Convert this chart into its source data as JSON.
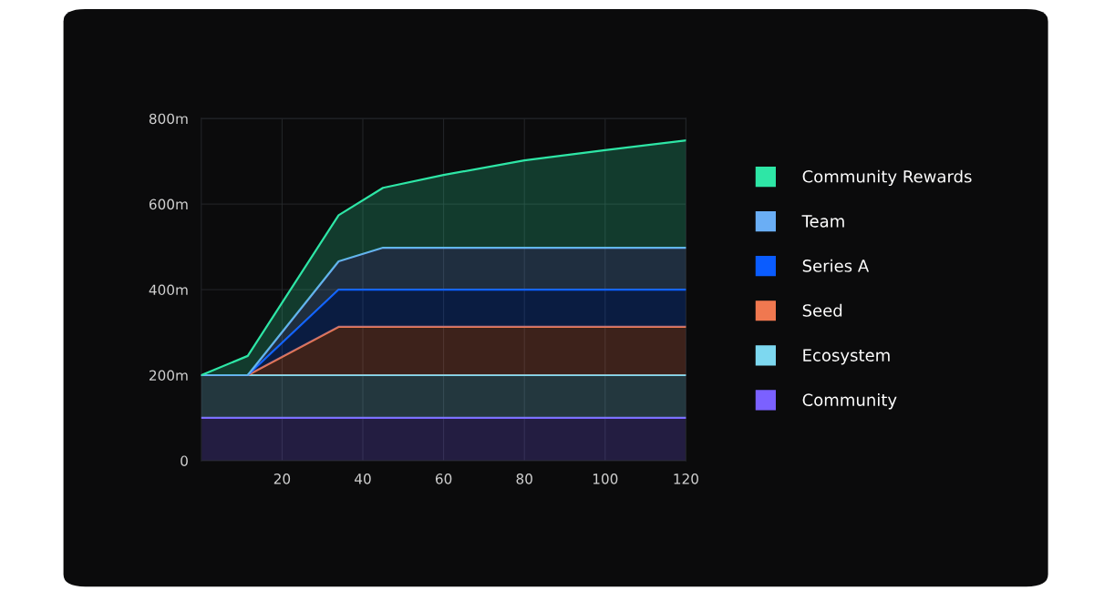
{
  "chart_data": {
    "type": "area",
    "stacked": true,
    "x": [
      0,
      11.5,
      34,
      45,
      60,
      80,
      100,
      120
    ],
    "series": [
      {
        "name": "Community",
        "color": "#7b61ff",
        "values": [
          100,
          100,
          100,
          100,
          100,
          100,
          100,
          100
        ]
      },
      {
        "name": "Ecosystem",
        "color": "#7dd8f0",
        "values": [
          100,
          100,
          100,
          100,
          100,
          100,
          100,
          100
        ]
      },
      {
        "name": "Seed",
        "color": "#f07850",
        "values": [
          0,
          0,
          113,
          113,
          113,
          113,
          113,
          113
        ]
      },
      {
        "name": "Series A",
        "color": "#0a5cff",
        "values": [
          0,
          0,
          87,
          87,
          87,
          87,
          87,
          87
        ]
      },
      {
        "name": "Team",
        "color": "#6aaef5",
        "values": [
          0,
          0,
          66,
          98,
          98,
          98,
          98,
          98
        ]
      },
      {
        "name": "Community Rewards",
        "color": "#2ee6a6",
        "values": [
          0,
          45,
          108,
          140,
          170,
          204,
          228,
          251
        ]
      }
    ],
    "xlim": [
      0,
      120
    ],
    "xticks": [
      20,
      40,
      60,
      80,
      100,
      120
    ],
    "ylim": [
      0,
      800
    ],
    "yticks": [
      0,
      {
        "value": 200,
        "label": "200m"
      },
      {
        "value": 400,
        "label": "400m"
      },
      {
        "value": 600,
        "label": "600m"
      },
      {
        "value": 800,
        "label": "800m"
      }
    ],
    "grid": true,
    "legend": "right"
  }
}
